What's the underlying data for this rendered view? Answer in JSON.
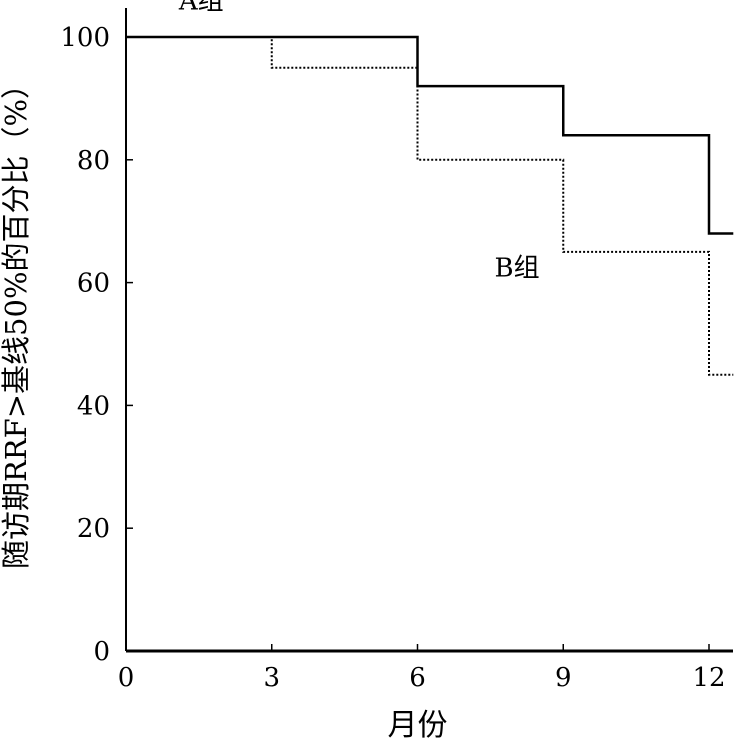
{
  "chart_data": {
    "type": "line",
    "step": true,
    "xlabel": "月份",
    "ylabel": "随访期RRF>基线50%的百分比（%）",
    "xlim": [
      0,
      12.5
    ],
    "ylim": [
      0,
      106
    ],
    "xticks": [
      0,
      3,
      6,
      9,
      12
    ],
    "yticks": [
      0,
      20,
      40,
      60,
      80,
      100
    ],
    "grid": false,
    "series": [
      {
        "name": "A组",
        "style": "solid",
        "color": "#000000",
        "x": [
          0,
          6,
          9,
          12,
          12.5
        ],
        "y": [
          100,
          92,
          84,
          68,
          68
        ]
      },
      {
        "name": "B组",
        "style": "dotted",
        "color": "#000000",
        "x": [
          0,
          3,
          6,
          9,
          12,
          12.5
        ],
        "y": [
          100,
          95,
          80,
          65,
          45,
          45
        ]
      }
    ]
  }
}
